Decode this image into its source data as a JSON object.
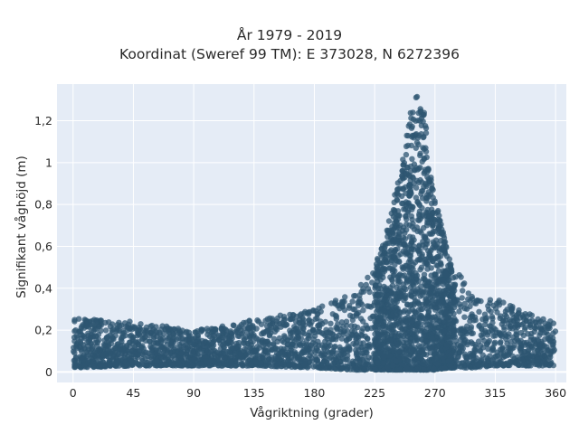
{
  "chart_data": {
    "type": "scatter",
    "title": "År 1979 - 2019",
    "subtitle": "Koordinat (Sweref 99 TM): E 373028, N 6272396",
    "xlabel": "Vågriktning (grader)",
    "ylabel": "Signifikant våghöjd (m)",
    "xlim": [
      -12,
      368
    ],
    "ylim": [
      -0.05,
      1.375
    ],
    "xticks": [
      0,
      45,
      90,
      135,
      180,
      225,
      270,
      315,
      360
    ],
    "xtick_labels": [
      "0",
      "45",
      "90",
      "135",
      "180",
      "225",
      "270",
      "315",
      "360"
    ],
    "yticks": [
      0,
      0.2,
      0.4,
      0.6,
      0.8,
      1,
      1.2
    ],
    "ytick_labels": [
      "0",
      "0,2",
      "0,4",
      "0,6",
      "0,8",
      "1",
      "1,2"
    ],
    "grid": true,
    "marker_color": "#2e5571",
    "plot_background": "#e5ecf6",
    "envelope": {
      "x": [
        0,
        45,
        90,
        135,
        180,
        210,
        225,
        235,
        245,
        250,
        255,
        258,
        262,
        265,
        270,
        280,
        300,
        315,
        340,
        360
      ],
      "y_max": [
        0.26,
        0.24,
        0.2,
        0.25,
        0.3,
        0.38,
        0.5,
        0.7,
        1.0,
        1.2,
        1.32,
        1.32,
        1.25,
        1.1,
        0.85,
        0.55,
        0.35,
        0.35,
        0.28,
        0.24
      ],
      "y_min": [
        0.02,
        0.03,
        0.03,
        0.03,
        0.02,
        0.01,
        0.01,
        0.01,
        0.01,
        0.01,
        0.01,
        0.01,
        0.01,
        0.01,
        0.01,
        0.02,
        0.02,
        0.03,
        0.03,
        0.03
      ]
    }
  }
}
